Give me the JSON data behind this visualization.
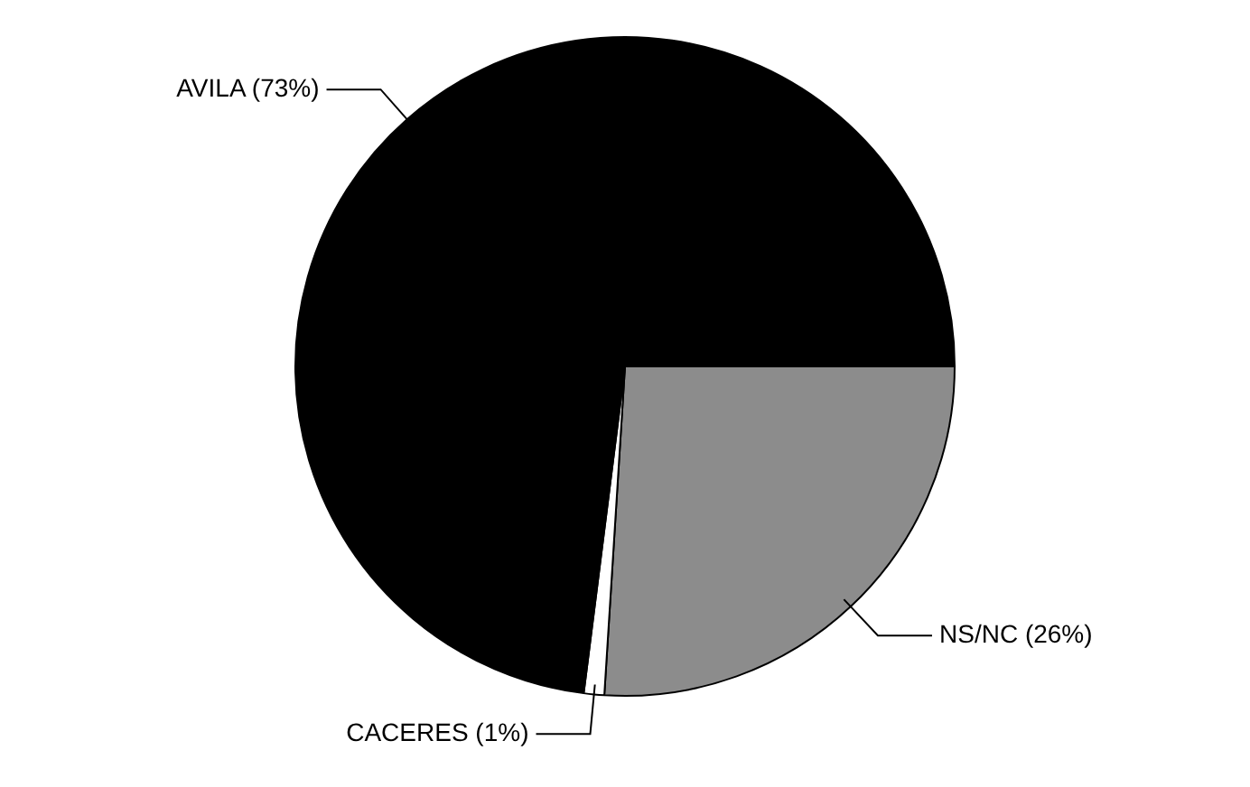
{
  "chart_data": {
    "type": "pie",
    "categories": [
      "NS/NC",
      "CACERES",
      "AVILA"
    ],
    "values": [
      26,
      1,
      73
    ],
    "colors": [
      "#8c8c8c",
      "#ffffff",
      "#000000"
    ],
    "value_labels": [
      "(26%)",
      "(1%)",
      "(73%)"
    ]
  }
}
